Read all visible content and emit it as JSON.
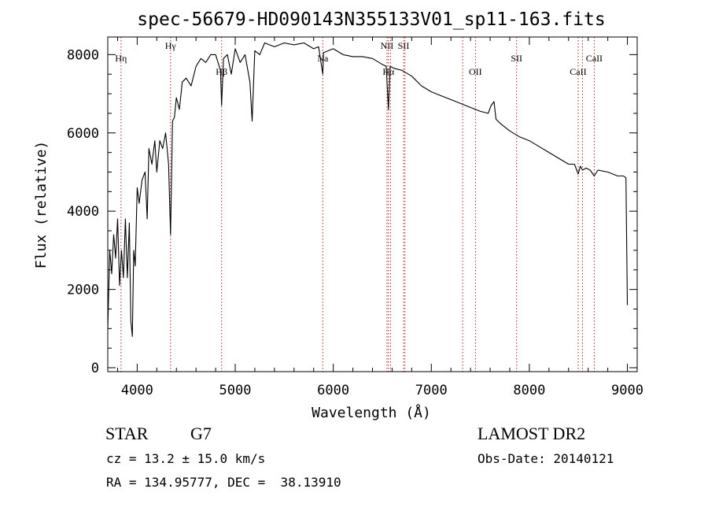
{
  "chart_data": {
    "type": "line",
    "title": "spec-56679-HD090143N355133V01_sp11-163.fits",
    "xlabel": "Wavelength (Å)",
    "ylabel": "Flux (relative)",
    "xlim": [
      3700,
      9100
    ],
    "ylim": [
      -100,
      8450
    ],
    "xticks": [
      4000,
      5000,
      6000,
      7000,
      8000,
      9000
    ],
    "yticks": [
      0,
      2000,
      4000,
      6000,
      8000
    ],
    "grid": false,
    "line_color": "#000000",
    "marker_color": "#b22222",
    "series": [
      {
        "x": [
          3700,
          3720,
          3740,
          3760,
          3780,
          3800,
          3820,
          3840,
          3860,
          3880,
          3900,
          3920,
          3935,
          3950,
          3965,
          3980,
          4000,
          4020,
          4050,
          4080,
          4102,
          4120,
          4150,
          4180,
          4200,
          4230,
          4260,
          4290,
          4320,
          4340,
          4360,
          4380,
          4400,
          4430,
          4460,
          4500,
          4550,
          4600,
          4650,
          4700,
          4750,
          4800,
          4850,
          4861,
          4880,
          4920,
          4960,
          5000,
          5050,
          5100,
          5150,
          5172,
          5200,
          5250,
          5300,
          5400,
          5500,
          5600,
          5700,
          5800,
          5850,
          5893,
          5900,
          5950,
          6000,
          6100,
          6200,
          6300,
          6400,
          6500,
          6540,
          6563,
          6580,
          6620,
          6700,
          6800,
          6900,
          7000,
          7100,
          7200,
          7300,
          7400,
          7500,
          7580,
          7610,
          7640,
          7660,
          7700,
          7800,
          7900,
          8000,
          8100,
          8200,
          8300,
          8400,
          8460,
          8498,
          8520,
          8542,
          8580,
          8620,
          8662,
          8700,
          8800,
          8900,
          8960,
          8985,
          9000
        ],
        "y": [
          1000,
          3000,
          2400,
          3400,
          2800,
          3800,
          2100,
          3000,
          2300,
          3800,
          2300,
          3700,
          1200,
          800,
          3000,
          2600,
          4600,
          4200,
          4800,
          5000,
          3800,
          5600,
          5200,
          5800,
          5000,
          5800,
          5600,
          6000,
          5200,
          3400,
          6300,
          6400,
          6900,
          6600,
          7300,
          7400,
          7200,
          7700,
          7900,
          7800,
          8000,
          8000,
          7600,
          6700,
          7900,
          8000,
          7500,
          8150,
          7800,
          8000,
          7300,
          6300,
          8100,
          8000,
          8300,
          8200,
          8300,
          8250,
          8300,
          8150,
          8200,
          7500,
          8050,
          8100,
          8150,
          8000,
          7950,
          7950,
          7900,
          7750,
          7700,
          6600,
          7700,
          7650,
          7600,
          7450,
          7200,
          7050,
          6950,
          6850,
          6750,
          6650,
          6550,
          6500,
          6700,
          6800,
          6350,
          6250,
          6050,
          5900,
          5800,
          5650,
          5500,
          5350,
          5200,
          5200,
          4950,
          5150,
          5050,
          5100,
          5050,
          4900,
          5050,
          5000,
          4900,
          4900,
          4850,
          1600
        ]
      }
    ],
    "line_markers": [
      {
        "label": "Hη",
        "x": 3835,
        "row": 1
      },
      {
        "label": "Hγ",
        "x": 4340,
        "row": 0
      },
      {
        "label": "Hβ",
        "x": 4861,
        "row": 2
      },
      {
        "label": "Na",
        "x": 5893,
        "row": 1
      },
      {
        "label": "NII",
        "x": 6548,
        "row": 0
      },
      {
        "label": "Hα",
        "x": 6563,
        "row": 2
      },
      {
        "label": "NII",
        "x": 6584,
        "row": -1
      },
      {
        "label": "SII",
        "x": 6717,
        "row": 0
      },
      {
        "label": "SII",
        "x": 6731,
        "row": -1
      },
      {
        "label": "OII",
        "x": 7320,
        "row": -1
      },
      {
        "label": "OII",
        "x": 7450,
        "row": 2
      },
      {
        "label": "SII",
        "x": 7870,
        "row": 1
      },
      {
        "label": "CaII",
        "x": 8498,
        "row": 2
      },
      {
        "label": "CaII",
        "x": 8542,
        "row": -1
      },
      {
        "label": "CaII",
        "x": 8662,
        "row": 1
      }
    ]
  },
  "footer": {
    "object_class": "STAR",
    "subclass": "G7",
    "survey": "LAMOST DR2",
    "cz": "cz = 13.2 ± 15.0 km/s",
    "obs_date": "Obs-Date: 20140121",
    "coords": "RA = 134.95777, DEC =  38.13910"
  }
}
